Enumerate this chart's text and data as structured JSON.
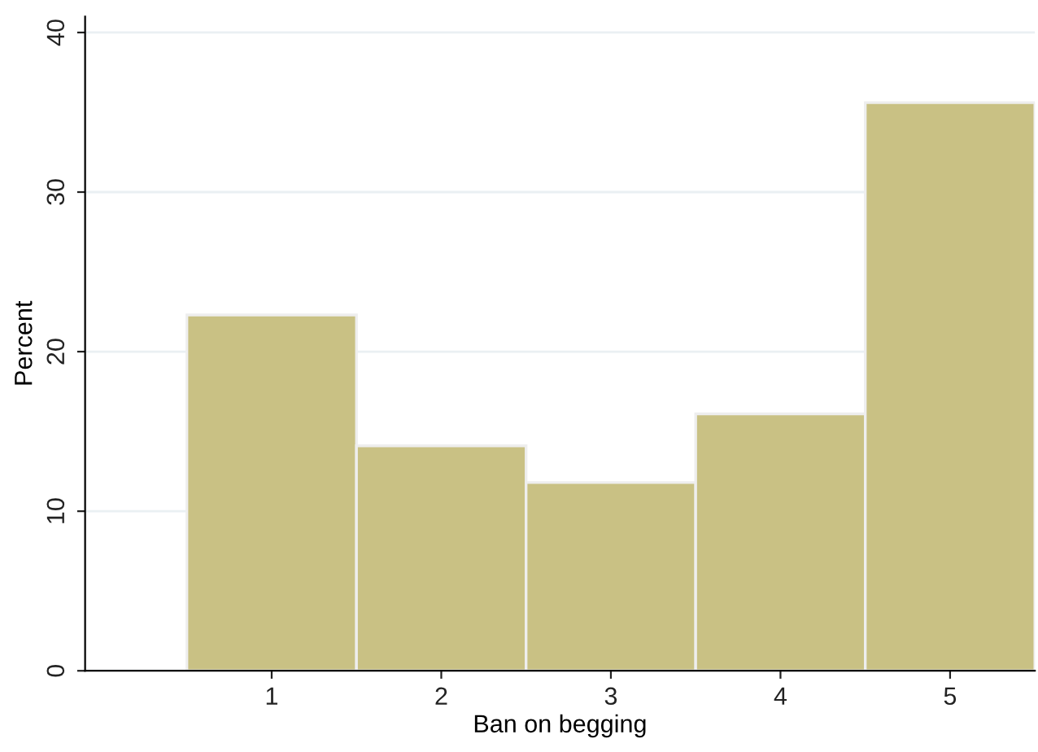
{
  "chart_data": {
    "type": "histogram",
    "xlabel": "Ban on begging",
    "ylabel": "Percent",
    "bins": [
      0.5,
      1.5,
      2.5,
      3.5,
      4.5,
      5.5
    ],
    "values": [
      22.3,
      14.1,
      11.8,
      16.1,
      35.6
    ],
    "color": "#c9c184",
    "xlim": [
      -0.1,
      5.5
    ],
    "xticks": [
      1,
      2,
      3,
      4,
      5
    ],
    "ylim": [
      0,
      41
    ],
    "yticks": [
      0,
      10,
      20,
      30,
      40
    ],
    "grid": "y"
  }
}
